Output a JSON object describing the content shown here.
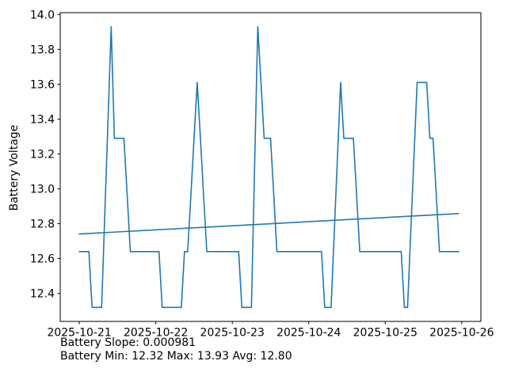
{
  "chart_data": {
    "type": "line",
    "title": "",
    "xlabel": "",
    "ylabel": "Battery Voltage",
    "ylabel_color": "#1f77b4",
    "line_color": "#1f77b4",
    "trend_color": "#1f77b4",
    "axis_color": "#000000",
    "background_color": "#ffffff",
    "grid": false,
    "legend": false,
    "x_start": "2025-10-21",
    "x_interval_hours": 1,
    "x_tick_hours": [
      0,
      24,
      48,
      72,
      96,
      120
    ],
    "x_tick_labels": [
      "2025-10-21",
      "2025-10-22",
      "2025-10-23",
      "2025-10-24",
      "2025-10-25",
      "2025-10-26"
    ],
    "xlim_hours": [
      -6,
      126
    ],
    "y_ticks": [
      12.4,
      12.6,
      12.8,
      13.0,
      13.2,
      13.4,
      13.6,
      13.8,
      14.0
    ],
    "ylim": [
      12.2395,
      14.0105
    ],
    "series": [
      {
        "name": "Battery Voltage",
        "values": [
          12.64,
          12.64,
          12.64,
          12.64,
          12.32,
          12.32,
          12.32,
          12.32,
          12.86,
          13.39,
          13.93,
          13.29,
          13.29,
          13.29,
          13.29,
          12.97,
          12.64,
          12.64,
          12.64,
          12.64,
          12.64,
          12.64,
          12.64,
          12.64,
          12.64,
          12.64,
          12.32,
          12.32,
          12.32,
          12.32,
          12.32,
          12.32,
          12.32,
          12.64,
          12.64,
          12.96,
          13.29,
          13.61,
          13.29,
          12.96,
          12.64,
          12.64,
          12.64,
          12.64,
          12.64,
          12.64,
          12.64,
          12.64,
          12.64,
          12.64,
          12.64,
          12.32,
          12.32,
          12.32,
          12.32,
          13.13,
          13.93,
          13.61,
          13.29,
          13.29,
          13.29,
          12.97,
          12.64,
          12.64,
          12.64,
          12.64,
          12.64,
          12.64,
          12.64,
          12.64,
          12.64,
          12.64,
          12.64,
          12.64,
          12.64,
          12.64,
          12.64,
          12.32,
          12.32,
          12.32,
          12.75,
          13.18,
          13.61,
          13.29,
          13.29,
          13.29,
          13.29,
          12.97,
          12.64,
          12.64,
          12.64,
          12.64,
          12.64,
          12.64,
          12.64,
          12.64,
          12.64,
          12.64,
          12.64,
          12.64,
          12.64,
          12.64,
          12.32,
          12.32,
          12.75,
          13.18,
          13.61,
          13.61,
          13.61,
          13.61,
          13.29,
          13.29,
          12.97,
          12.64,
          12.64,
          12.64,
          12.64,
          12.64,
          12.64,
          12.64
        ]
      },
      {
        "name": "Trend",
        "x_hours": [
          0,
          119
        ],
        "values": [
          12.741,
          12.858
        ]
      }
    ],
    "stats": {
      "slope": "0.000981",
      "min": "12.32",
      "max": "13.93",
      "avg": "12.80"
    },
    "annotations": [
      "Battery Slope: 0.000981",
      "Battery Min: 12.32 Max: 13.93 Avg: 12.80"
    ]
  }
}
